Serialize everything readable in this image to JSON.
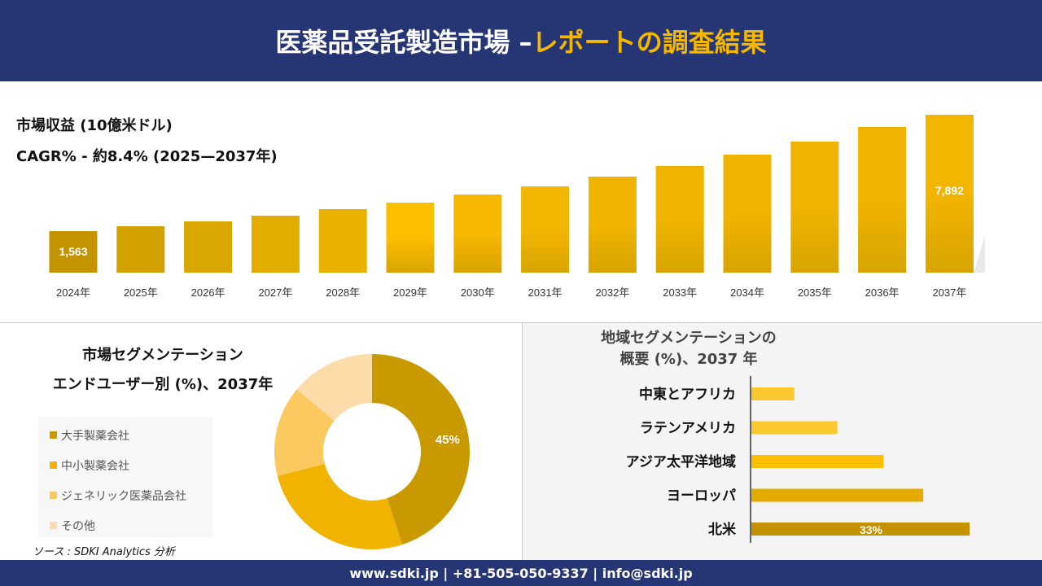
{
  "header": {
    "title_main": "医薬品受託製造市場 –",
    "title_accent": "レポートの調査結果"
  },
  "revenue": {
    "title": "市場収益 (10億米ドル)",
    "cagr": "CAGR% - 約8.4% (2025—2037年)"
  },
  "chart_data": [
    {
      "type": "bar",
      "title": "市場収益 (10億米ドル)",
      "categories": [
        "2024年",
        "2025年",
        "2026年",
        "2027年",
        "2028年",
        "2029年",
        "2030年",
        "2031年",
        "2032年",
        "2033年",
        "2034年",
        "2035年",
        "2036年",
        "2037年"
      ],
      "values": [
        1563,
        1829,
        2094,
        2404,
        2758,
        3112,
        3555,
        3998,
        4529,
        5104,
        5724,
        6432,
        7229,
        7892
      ],
      "data_labels": {
        "0": "1,563",
        "13": "7,892"
      }
    },
    {
      "type": "pie",
      "title": "市場セグメンテーション エンドユーザー別 (%)、2037年",
      "categories": [
        "大手製薬会社",
        "中小製薬会社",
        "ジェネリック医薬品会社",
        "その他"
      ],
      "values": [
        45,
        26,
        15,
        14
      ],
      "colors": [
        "#c99a00",
        "#f0b400",
        "#fcc860",
        "#fddcaa"
      ],
      "data_labels": {
        "0": "45%"
      },
      "legend": "left"
    },
    {
      "type": "bar",
      "orientation": "horizontal",
      "title": "地域セグメンテーションの 概要 (%)、2037 年",
      "categories": [
        "中東とアフリカ",
        "ラテンアメリカ",
        "アジア太平洋地域",
        "ヨーロッパ",
        "北米"
      ],
      "values": [
        6.5,
        13,
        20,
        26,
        33
      ],
      "colors": [
        "#fcc830",
        "#fcc830",
        "#fcc000",
        "#e3aa00",
        "#c49200"
      ],
      "data_labels": {
        "4": "33%"
      }
    }
  ],
  "segment": {
    "title1": "市場セグメンテーション",
    "title2": "エンドユーザー別 (%)、2037年",
    "source": "ソース : SDKI Analytics 分析"
  },
  "region": {
    "title1": "地域セグメンテーションの",
    "title2": "概要 (%)、2037 年"
  },
  "footer": {
    "text": "www.sdki.jp | +81-505-050-9337 | info@sdki.jp"
  },
  "colors": {
    "navy": "#263574",
    "accent": "#f5b800"
  }
}
